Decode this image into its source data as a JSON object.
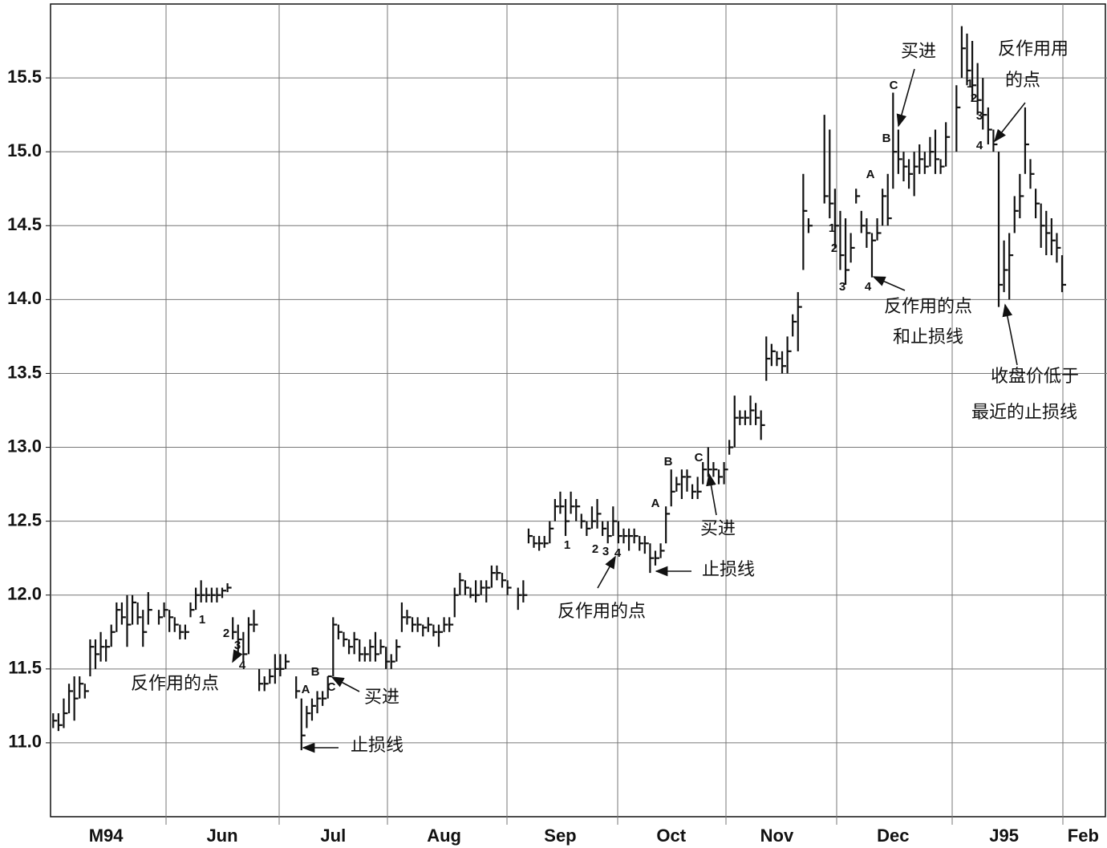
{
  "chart_data": {
    "type": "ohlc",
    "categories": [
      null,
      null,
      null,
      null,
      null,
      null,
      null,
      null,
      null,
      null,
      "M94",
      null,
      null,
      null,
      null,
      null,
      null,
      null,
      null,
      null,
      null,
      null,
      null,
      null,
      null,
      null,
      null,
      null,
      null,
      null,
      null,
      null,
      "Jun",
      null,
      null,
      null,
      null,
      null,
      null,
      null,
      null,
      null,
      null,
      null,
      null,
      null,
      null,
      null,
      null,
      null,
      null,
      null,
      null,
      "Jul",
      null,
      null,
      null,
      null,
      null,
      null,
      null,
      null,
      null,
      null,
      null,
      null,
      null,
      null,
      null,
      null,
      null,
      null,
      null,
      null,
      "Aug",
      null,
      null,
      null,
      null,
      null,
      null,
      null,
      null,
      null,
      null,
      null,
      null,
      null,
      null,
      null,
      null,
      null,
      null,
      null,
      null,
      null,
      "Sep",
      null,
      null,
      null,
      null,
      null,
      null,
      null,
      null,
      null,
      null,
      null,
      null,
      null,
      null,
      null,
      null,
      null,
      null,
      null,
      null,
      "Oct",
      null,
      null,
      null,
      null,
      null,
      null,
      null,
      null,
      null,
      null,
      null,
      null,
      null,
      null,
      null,
      null,
      null,
      null,
      null,
      "Nov",
      null,
      null,
      null,
      null,
      null,
      null,
      null,
      null,
      null,
      null,
      null,
      null,
      null,
      null,
      null,
      null,
      null,
      null,
      null,
      null,
      null,
      "Dec",
      null,
      null,
      null,
      null,
      null,
      null,
      null,
      null,
      null,
      null,
      null,
      null,
      null,
      null,
      null,
      null,
      null,
      null,
      null,
      null,
      "J95",
      null,
      null,
      null,
      null,
      null,
      null,
      null,
      null,
      null,
      null,
      null,
      null,
      null,
      null,
      "Feb",
      null,
      null,
      null,
      null
    ],
    "high": [
      11.2,
      11.2,
      11.3,
      11.4,
      11.45,
      11.45,
      11.4,
      11.7,
      11.7,
      11.75,
      11.7,
      11.8,
      11.95,
      11.95,
      12.0,
      12.0,
      11.95,
      11.9,
      12.02,
      null,
      11.9,
      11.95,
      11.9,
      11.85,
      11.8,
      11.8,
      11.95,
      12.05,
      12.1,
      12.05,
      12.05,
      12.05,
      12.05,
      12.08,
      11.85,
      11.8,
      11.75,
      11.85,
      11.9,
      11.5,
      11.45,
      11.5,
      11.6,
      11.6,
      11.6,
      null,
      11.45,
      11.3,
      11.25,
      11.3,
      11.35,
      11.35,
      11.45,
      11.85,
      11.8,
      11.75,
      11.7,
      11.75,
      11.7,
      11.65,
      11.7,
      11.75,
      11.7,
      11.65,
      11.6,
      11.7,
      11.95,
      11.9,
      11.85,
      11.85,
      11.8,
      11.85,
      11.8,
      11.8,
      11.85,
      11.85,
      12.05,
      12.15,
      12.1,
      12.05,
      12.1,
      12.1,
      12.1,
      12.2,
      12.2,
      12.15,
      12.1,
      null,
      12.05,
      12.1,
      12.45,
      12.4,
      12.4,
      12.4,
      12.5,
      12.65,
      12.7,
      12.65,
      12.7,
      12.65,
      12.55,
      12.5,
      12.6,
      12.65,
      12.5,
      12.5,
      12.6,
      12.5,
      12.45,
      12.45,
      12.45,
      12.4,
      12.4,
      12.35,
      12.3,
      12.35,
      12.6,
      12.85,
      12.8,
      12.85,
      12.85,
      12.75,
      12.8,
      12.9,
      13.0,
      12.9,
      12.85,
      12.9,
      13.05,
      13.35,
      13.25,
      13.25,
      13.35,
      13.3,
      13.25,
      13.75,
      13.7,
      13.65,
      13.65,
      13.75,
      13.9,
      14.05,
      14.85,
      14.55,
      null,
      null,
      15.25,
      15.15,
      14.75,
      14.6,
      14.55,
      14.45,
      14.75,
      14.6,
      14.55,
      14.45,
      14.55,
      14.75,
      14.85,
      15.4,
      15.15,
      15.0,
      14.95,
      15.0,
      15.05,
      15.0,
      15.1,
      15.15,
      14.95,
      15.2,
      null,
      15.45,
      15.85,
      15.8,
      15.75,
      15.6,
      15.5,
      15.3,
      15.15,
      15.0,
      14.4,
      14.45,
      14.7,
      14.85,
      15.3,
      14.95,
      14.75,
      14.65,
      14.6,
      14.55,
      14.45,
      14.3,
      null,
      null,
      null,
      null,
      null,
      null,
      null,
      null
    ],
    "low": [
      11.1,
      11.08,
      11.1,
      11.2,
      11.15,
      11.3,
      11.3,
      11.45,
      11.5,
      11.55,
      11.55,
      11.65,
      11.75,
      11.8,
      11.65,
      11.8,
      11.8,
      11.65,
      11.8,
      null,
      11.8,
      11.85,
      11.75,
      11.75,
      11.7,
      11.7,
      11.85,
      11.9,
      11.95,
      11.95,
      11.95,
      11.95,
      11.98,
      12.02,
      11.7,
      11.6,
      11.55,
      11.6,
      11.75,
      11.35,
      11.35,
      11.4,
      11.4,
      11.45,
      11.5,
      null,
      11.3,
      10.95,
      11.1,
      11.15,
      11.2,
      11.25,
      11.3,
      11.45,
      11.7,
      11.65,
      11.6,
      11.6,
      11.55,
      11.55,
      11.55,
      11.55,
      11.6,
      11.5,
      11.5,
      11.55,
      11.75,
      11.8,
      11.75,
      11.75,
      11.72,
      11.75,
      11.72,
      11.65,
      11.75,
      11.75,
      11.85,
      12.0,
      12.0,
      11.98,
      11.95,
      12.0,
      11.95,
      12.05,
      12.1,
      12.05,
      12.0,
      null,
      11.9,
      11.95,
      12.35,
      12.32,
      12.3,
      12.32,
      12.35,
      12.5,
      12.55,
      12.4,
      12.55,
      12.5,
      12.45,
      12.4,
      12.45,
      12.45,
      12.4,
      12.35,
      12.4,
      12.35,
      12.35,
      12.3,
      12.35,
      12.3,
      12.28,
      12.15,
      12.2,
      12.25,
      12.35,
      12.6,
      12.7,
      12.65,
      12.7,
      12.65,
      12.65,
      12.75,
      12.8,
      12.8,
      12.75,
      12.75,
      12.95,
      13.0,
      13.15,
      13.15,
      13.15,
      13.15,
      13.05,
      13.45,
      13.55,
      13.55,
      13.5,
      13.5,
      13.75,
      13.65,
      14.2,
      14.45,
      null,
      null,
      14.65,
      14.55,
      14.35,
      14.2,
      14.1,
      14.25,
      14.65,
      14.45,
      14.35,
      14.15,
      14.4,
      14.5,
      14.5,
      14.75,
      14.85,
      14.8,
      14.75,
      14.7,
      14.85,
      14.85,
      14.9,
      14.85,
      14.85,
      14.9,
      null,
      15.0,
      15.5,
      15.45,
      15.35,
      15.25,
      15.15,
      15.05,
      15.0,
      13.95,
      14.05,
      14.0,
      14.45,
      14.55,
      14.85,
      14.75,
      14.55,
      14.35,
      14.3,
      14.3,
      14.25,
      14.05,
      null,
      null,
      null,
      null,
      null,
      null,
      null,
      null
    ],
    "close": [
      11.15,
      11.12,
      11.2,
      11.35,
      11.3,
      11.4,
      11.35,
      11.65,
      11.6,
      11.65,
      11.65,
      11.75,
      11.9,
      11.85,
      11.8,
      11.95,
      11.85,
      11.75,
      11.9,
      null,
      11.85,
      11.9,
      11.85,
      11.8,
      11.75,
      11.75,
      11.9,
      12.0,
      12.0,
      12.0,
      12.0,
      12.0,
      12.03,
      12.05,
      11.75,
      11.7,
      11.6,
      11.8,
      11.8,
      11.4,
      11.4,
      11.45,
      11.5,
      11.5,
      11.55,
      null,
      11.35,
      11.05,
      11.2,
      11.25,
      11.3,
      11.3,
      11.45,
      11.8,
      11.75,
      11.7,
      11.65,
      11.7,
      11.6,
      11.6,
      11.65,
      11.6,
      11.65,
      11.55,
      11.55,
      11.65,
      11.85,
      11.85,
      11.8,
      11.8,
      11.78,
      11.8,
      11.75,
      11.75,
      11.8,
      11.8,
      12.0,
      12.1,
      12.05,
      12.0,
      12.0,
      12.05,
      12.05,
      12.15,
      12.15,
      12.1,
      12.05,
      null,
      12.0,
      12.0,
      12.4,
      12.35,
      12.35,
      12.35,
      12.45,
      12.6,
      12.6,
      12.5,
      12.6,
      12.6,
      12.5,
      12.45,
      12.5,
      12.55,
      12.45,
      12.4,
      12.5,
      12.4,
      12.4,
      12.4,
      12.4,
      12.35,
      12.35,
      12.25,
      12.25,
      12.3,
      12.55,
      12.7,
      12.75,
      12.8,
      12.8,
      12.7,
      12.7,
      12.85,
      12.85,
      12.85,
      12.8,
      12.85,
      13.0,
      13.2,
      13.2,
      13.2,
      13.25,
      13.2,
      13.15,
      13.6,
      13.65,
      13.6,
      13.55,
      13.65,
      13.85,
      13.95,
      14.6,
      14.5,
      null,
      null,
      14.7,
      14.65,
      14.5,
      14.3,
      14.2,
      14.35,
      14.7,
      14.5,
      14.45,
      14.4,
      14.45,
      14.7,
      14.55,
      15.0,
      14.95,
      14.9,
      14.85,
      14.9,
      14.95,
      14.9,
      15.0,
      14.95,
      14.9,
      15.1,
      null,
      15.3,
      15.7,
      15.55,
      15.45,
      15.35,
      15.25,
      15.15,
      15.05,
      14.1,
      14.2,
      14.3,
      14.6,
      14.7,
      15.05,
      14.85,
      14.65,
      14.5,
      14.45,
      14.4,
      14.35,
      14.1,
      null,
      null,
      null,
      null,
      null,
      null,
      null,
      null
    ],
    "ylim": [
      10.5,
      16.0
    ],
    "yticks": [
      {
        "value": 11.0,
        "label": "11.0"
      },
      11.5,
      {
        "value": 12.0,
        "label": "12.0"
      },
      12.5,
      {
        "value": 13.0,
        "label": "13.0"
      },
      13.5,
      {
        "value": 14.0,
        "label": "14.0"
      },
      14.5,
      {
        "value": 15.0,
        "label": "15.0"
      },
      15.5
    ],
    "grid": true,
    "color": "#111111",
    "annotations": [
      "反作用的点",
      "买进",
      "止损线",
      "反作用的点",
      "买进",
      "止损线",
      "反作用的点",
      "和止损线",
      "买进",
      "反作用用",
      "的点",
      "收盘价低于",
      "最近的止损线",
      "1",
      "2",
      "3",
      "4",
      "A",
      "B",
      "C",
      "1",
      "2",
      "3",
      "4",
      "A",
      "B",
      "C",
      "1",
      "2",
      "3",
      "4",
      "A",
      "B",
      "C",
      "1",
      "2",
      "3",
      "4"
    ]
  }
}
